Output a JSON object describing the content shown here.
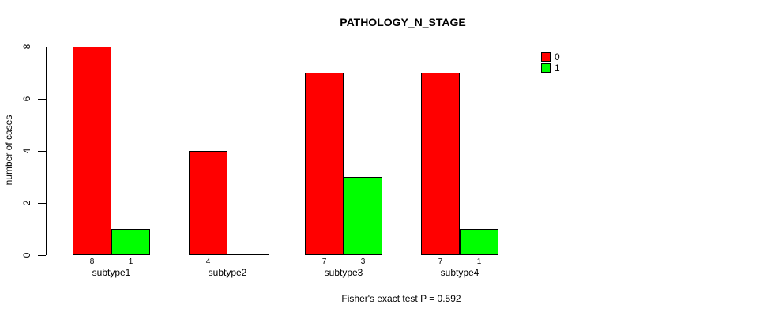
{
  "chart_data": {
    "type": "bar",
    "title": "PATHOLOGY_N_STAGE",
    "ylabel": "number of cases",
    "xlabel": "",
    "footnote": "Fisher's exact test P = 0.592",
    "categories": [
      "subtype1",
      "subtype2",
      "subtype3",
      "subtype4"
    ],
    "series": [
      {
        "name": "0",
        "color": "#FF0000",
        "values": [
          8,
          4,
          7,
          7
        ]
      },
      {
        "name": "1",
        "color": "#00FF00",
        "values": [
          1,
          0,
          3,
          1
        ]
      }
    ],
    "ylim": [
      0,
      8
    ],
    "yticks": [
      0,
      2,
      4,
      6,
      8
    ],
    "bar_value_labels_shown": true,
    "zero_value_label_hidden": true,
    "legend_position": "top-right",
    "grid": false
  },
  "colors": {
    "background": "#FFFFFF",
    "axis": "#000000",
    "text": "#000000",
    "bar_border": "#000000",
    "series_0": "#FF0000",
    "series_1": "#00FF00"
  }
}
